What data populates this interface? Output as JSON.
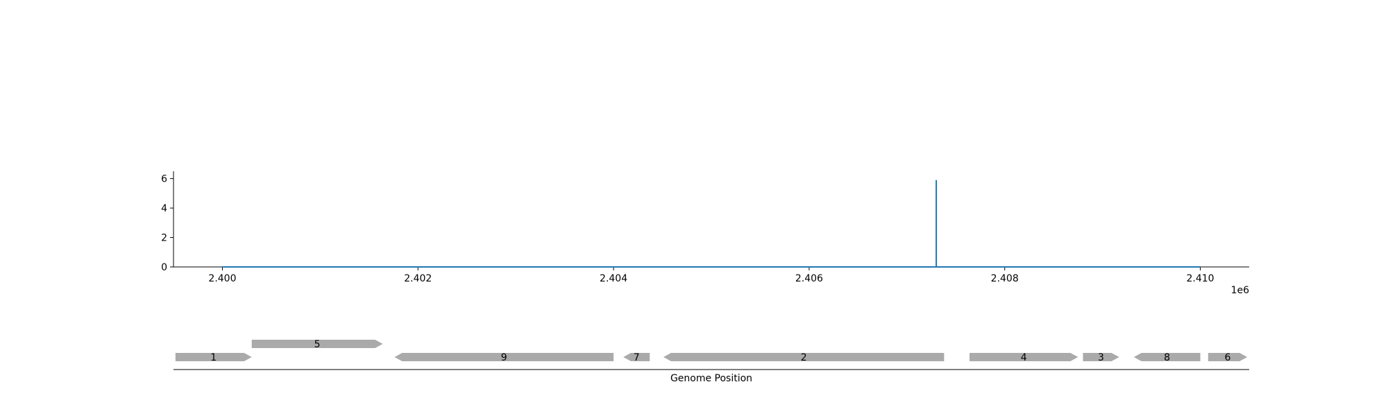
{
  "chart_data": [
    {
      "type": "line",
      "x_offset_label": "1e6",
      "xlim": [
        2399500,
        2410500
      ],
      "ylim": [
        0,
        6.5
      ],
      "x_ticks": [
        2400000,
        2402000,
        2404000,
        2406000,
        2408000,
        2410000
      ],
      "x_tick_labels": [
        "2.400",
        "2.402",
        "2.404",
        "2.406",
        "2.408",
        "2.410"
      ],
      "y_ticks": [
        0,
        2,
        4,
        6
      ],
      "y_tick_labels": [
        "0",
        "2",
        "4",
        "6"
      ],
      "x_range": [
        2400000,
        2410000
      ],
      "baseline": 0,
      "spikes": [
        {
          "x": 2407300,
          "y": 5.9
        }
      ],
      "grid": false,
      "colors": {
        "line": "#1f77b4"
      }
    },
    {
      "type": "gene-map",
      "xlabel": "Genome Position",
      "xlim": [
        2399500,
        2410500
      ],
      "colors": {
        "gene": "#aaaaaa"
      },
      "genes": [
        {
          "label": "1",
          "start": 2399520,
          "end": 2400300,
          "strand": "+",
          "row": 0
        },
        {
          "label": "5",
          "start": 2400300,
          "end": 2401640,
          "strand": "+",
          "row": 1
        },
        {
          "label": "9",
          "start": 2401760,
          "end": 2404000,
          "strand": "-",
          "row": 0
        },
        {
          "label": "7",
          "start": 2404100,
          "end": 2404370,
          "strand": "-",
          "row": 0
        },
        {
          "label": "2",
          "start": 2404510,
          "end": 2407380,
          "strand": "-",
          "row": 0
        },
        {
          "label": "4",
          "start": 2407640,
          "end": 2408750,
          "strand": "+",
          "row": 0
        },
        {
          "label": "3",
          "start": 2408800,
          "end": 2409170,
          "strand": "+",
          "row": 0
        },
        {
          "label": "8",
          "start": 2409320,
          "end": 2410000,
          "strand": "-",
          "row": 0
        },
        {
          "label": "6",
          "start": 2410080,
          "end": 2410480,
          "strand": "+",
          "row": 0
        }
      ]
    }
  ]
}
